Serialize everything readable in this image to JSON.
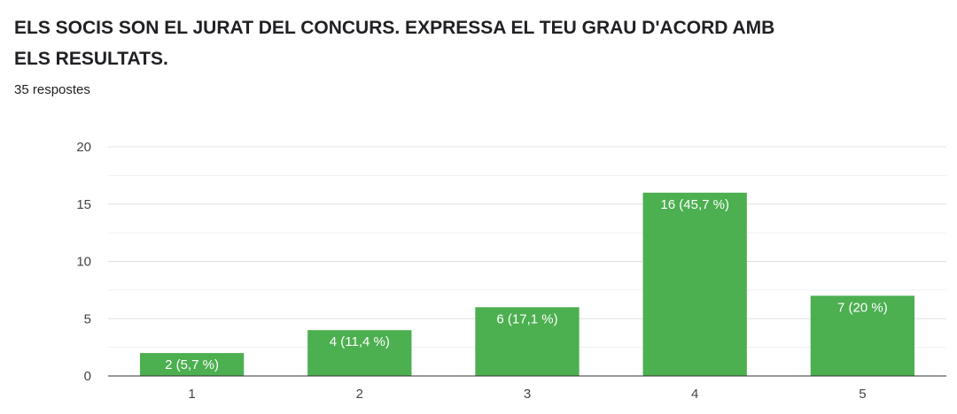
{
  "question": {
    "title": "ELS SOCIS SON EL JURAT DEL CONCURS. EXPRESSA EL TEU GRAU D'ACORD AMB ELS RESULTATS.",
    "response_count": "35 respostes"
  },
  "chart_data": {
    "type": "bar",
    "title": "",
    "xlabel": "",
    "ylabel": "",
    "categories": [
      "1",
      "2",
      "3",
      "4",
      "5"
    ],
    "values": [
      2,
      4,
      6,
      16,
      7
    ],
    "data_labels": [
      "2 (5,7 %)",
      "4 (11,4 %)",
      "6 (17,1 %)",
      "16 (45,7 %)",
      "7 (20 %)"
    ],
    "ylim": [
      0,
      20
    ],
    "yticks": [
      0,
      5,
      10,
      15,
      20
    ],
    "grid": true,
    "legend": "none",
    "colors": {
      "bar": "#4caf50",
      "grid": "#e0e0e0",
      "axis": "#333333"
    }
  }
}
